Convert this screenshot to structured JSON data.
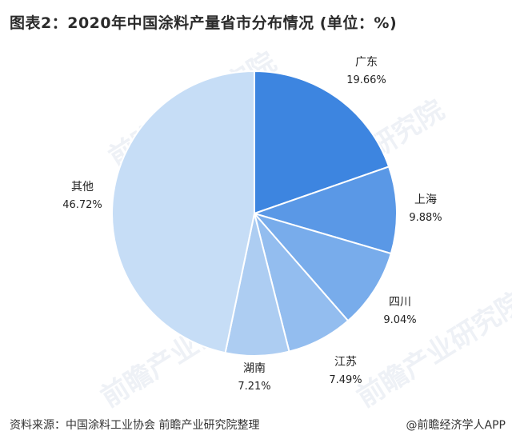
{
  "title": "图表2：2020年中国涂料产量省市分布情况 (单位：%)",
  "chart_data": {
    "type": "pie",
    "categories": [
      "广东",
      "上海",
      "四川",
      "江苏",
      "湖南",
      "其他"
    ],
    "values": [
      19.66,
      9.88,
      9.04,
      7.49,
      7.21,
      46.72
    ],
    "value_labels": [
      "19.66%",
      "9.88%",
      "9.04%",
      "7.49%",
      "7.21%",
      "46.72%"
    ],
    "colors": [
      "#3d85e0",
      "#5a98e6",
      "#78aceb",
      "#93bdef",
      "#adcdf2",
      "#c6ddf6"
    ],
    "start_angle_deg": 0,
    "direction": "clockwise"
  },
  "footer": {
    "source": "资料来源：中国涂料工业协会 前瞻产业研究院整理",
    "credit": "@前瞻经济学人APP"
  },
  "watermark": "前瞻产业研究院"
}
